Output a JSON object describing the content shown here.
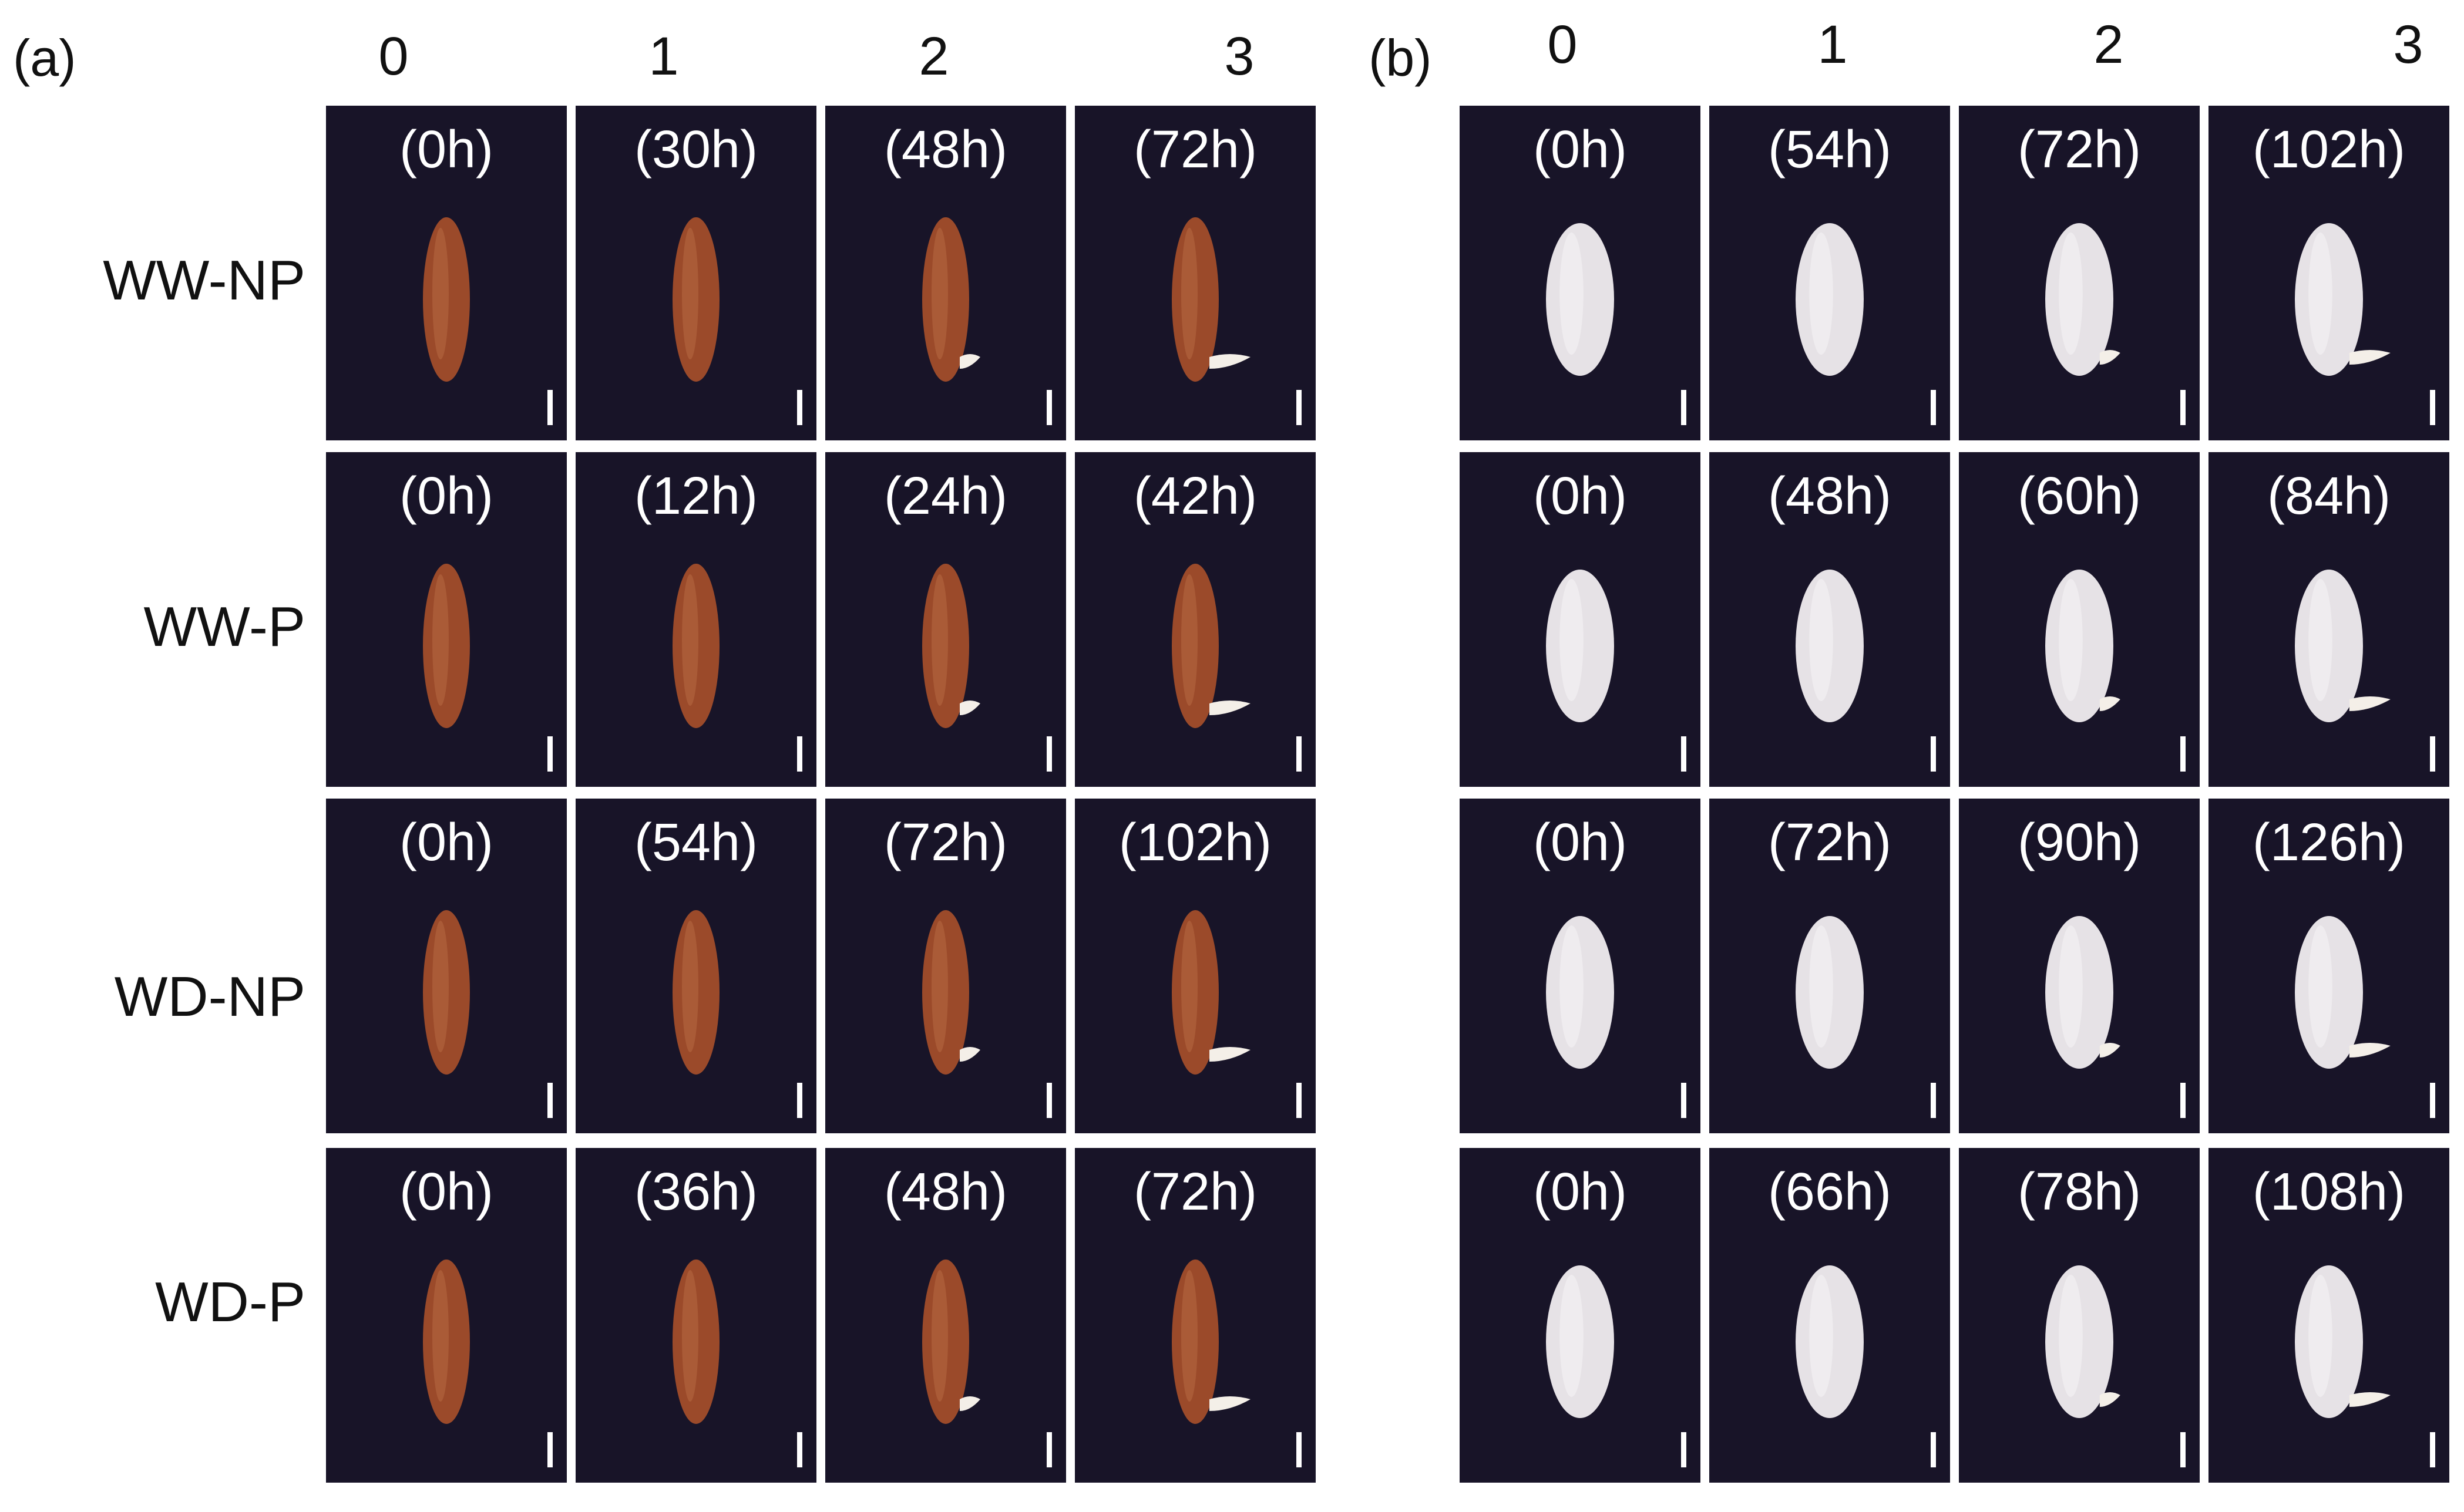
{
  "panels": [
    {
      "label": "(a)",
      "stages": [
        "0",
        "1",
        "2",
        "3"
      ],
      "grain_color": "#9b4a2a",
      "grain_highlight": "#c77a4f",
      "rows": [
        {
          "label": "WW-NP",
          "times": [
            "(0h)",
            "(30h)",
            "(48h)",
            "(72h)"
          ]
        },
        {
          "label": "WW-P",
          "times": [
            "(0h)",
            "(12h)",
            "(24h)",
            "(42h)"
          ]
        },
        {
          "label": "WD-NP",
          "times": [
            "(0h)",
            "(54h)",
            "(72h)",
            "(102h)"
          ]
        },
        {
          "label": "WD-P",
          "times": [
            "(0h)",
            "(36h)",
            "(48h)",
            "(72h)"
          ]
        }
      ]
    },
    {
      "label": "(b)",
      "stages": [
        "0",
        "1",
        "2",
        "3"
      ],
      "grain_color": "#e6e2e6",
      "grain_highlight": "#ffffff",
      "rows": [
        {
          "times": [
            "(0h)",
            "(54h)",
            "(72h)",
            "(102h)"
          ]
        },
        {
          "times": [
            "(0h)",
            "(48h)",
            "(60h)",
            "(84h)"
          ]
        },
        {
          "times": [
            "(0h)",
            "(72h)",
            "(90h)",
            "(126h)"
          ]
        },
        {
          "times": [
            "(0h)",
            "(66h)",
            "(78h)",
            "(108h)"
          ]
        }
      ]
    }
  ],
  "tile_background": "#181428"
}
